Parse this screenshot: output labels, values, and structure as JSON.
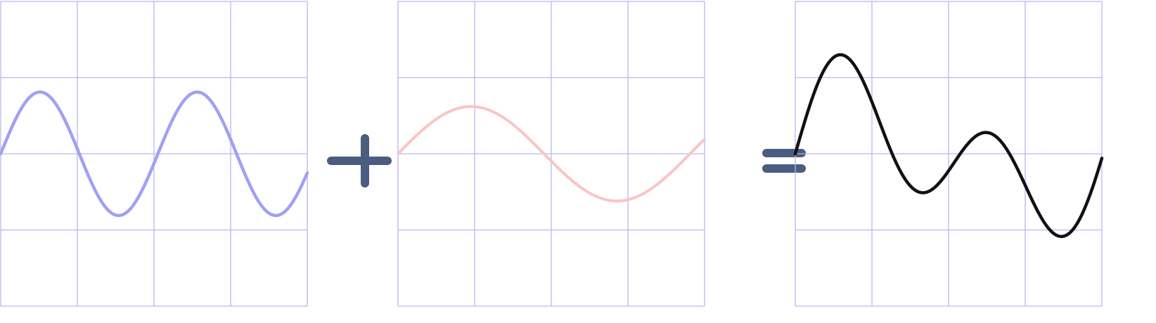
{
  "diagram": {
    "description_free": true,
    "panels": [
      {
        "id": "wave-a",
        "line_color": "#a0a0f5",
        "amplitude": 0.81,
        "cycles": 1.95,
        "phase_deg": 0
      },
      {
        "id": "wave-b",
        "line_color": "#fbc4c4",
        "amplitude": 0.62,
        "cycles": 1.05,
        "phase_deg": 0
      },
      {
        "id": "wave-sum",
        "line_color": "#111111"
      }
    ],
    "operators": [
      {
        "id": "plus",
        "symbol": "+",
        "color": "#4a5c80"
      },
      {
        "id": "equals",
        "symbol": "=",
        "color": "#4a5c80"
      }
    ],
    "grid": {
      "color": "#b7b7f0",
      "divisions": 4
    }
  }
}
